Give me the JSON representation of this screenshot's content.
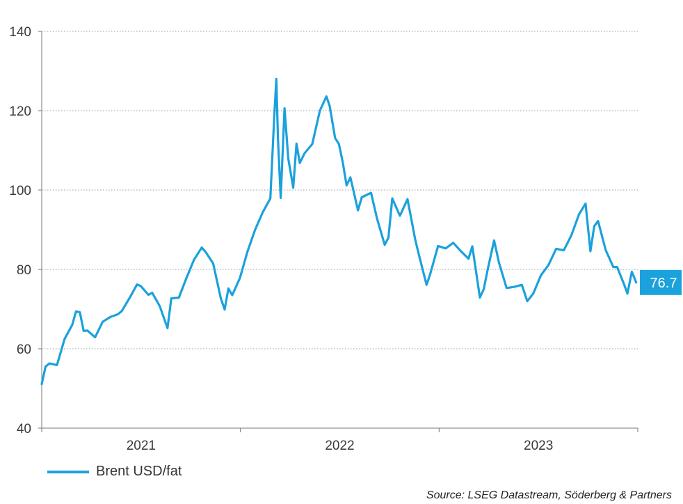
{
  "chart_data": {
    "type": "line",
    "title": "",
    "xlabel": "",
    "ylabel": "",
    "ylim": [
      40,
      140
    ],
    "y_ticks": [
      "40",
      "60",
      "80",
      "100",
      "120",
      "140"
    ],
    "x_ticks": [
      "2021",
      "2022",
      "2023"
    ],
    "grid": "horizontal dotted",
    "legend_position": "bottom-left",
    "series": [
      {
        "name": "Brent USD/fat",
        "color": "#1ba1dc",
        "x": [
          "2021-01-01",
          "2021-01-08",
          "2021-01-15",
          "2021-01-29",
          "2021-02-12",
          "2021-02-26",
          "2021-03-05",
          "2021-03-12",
          "2021-03-19",
          "2021-03-26",
          "2021-04-09",
          "2021-04-23",
          "2021-05-07",
          "2021-05-21",
          "2021-05-28",
          "2021-06-11",
          "2021-06-25",
          "2021-07-02",
          "2021-07-16",
          "2021-07-23",
          "2021-08-06",
          "2021-08-20",
          "2021-08-27",
          "2021-09-10",
          "2021-09-24",
          "2021-10-08",
          "2021-10-22",
          "2021-10-29",
          "2021-11-12",
          "2021-11-26",
          "2021-12-03",
          "2021-12-10",
          "2021-12-17",
          "2021-12-31",
          "2022-01-14",
          "2022-01-28",
          "2022-02-11",
          "2022-02-25",
          "2022-03-04",
          "2022-03-08",
          "2022-03-11",
          "2022-03-16",
          "2022-03-23",
          "2022-03-30",
          "2022-04-08",
          "2022-04-14",
          "2022-04-20",
          "2022-04-29",
          "2022-05-13",
          "2022-05-27",
          "2022-06-08",
          "2022-06-14",
          "2022-06-24",
          "2022-07-01",
          "2022-07-08",
          "2022-07-15",
          "2022-07-22",
          "2022-08-05",
          "2022-08-12",
          "2022-08-29",
          "2022-09-09",
          "2022-09-23",
          "2022-09-30",
          "2022-10-07",
          "2022-10-21",
          "2022-11-04",
          "2022-11-18",
          "2022-11-25",
          "2022-12-09",
          "2022-12-16",
          "2022-12-30",
          "2023-01-13",
          "2023-01-27",
          "2023-02-10",
          "2023-02-24",
          "2023-03-03",
          "2023-03-17",
          "2023-03-24",
          "2023-03-31",
          "2023-04-12",
          "2023-04-21",
          "2023-05-05",
          "2023-05-19",
          "2023-06-02",
          "2023-06-12",
          "2023-06-23",
          "2023-07-07",
          "2023-07-21",
          "2023-08-04",
          "2023-08-18",
          "2023-09-01",
          "2023-09-15",
          "2023-09-27",
          "2023-10-06",
          "2023-10-13",
          "2023-10-20",
          "2023-11-03",
          "2023-11-17",
          "2023-11-24",
          "2023-12-08",
          "2023-12-13",
          "2023-12-21",
          "2023-12-29"
        ],
        "values": [
          51.1,
          55.5,
          56.3,
          55.9,
          62.5,
          66.0,
          69.4,
          69.2,
          64.5,
          64.6,
          62.9,
          66.8,
          68.0,
          68.7,
          69.5,
          72.7,
          76.2,
          75.8,
          73.6,
          74.1,
          70.7,
          65.2,
          72.7,
          72.9,
          77.9,
          82.5,
          85.5,
          84.4,
          81.5,
          72.7,
          69.9,
          75.2,
          73.5,
          77.8,
          84.5,
          90.0,
          94.4,
          97.9,
          118.1,
          128.0,
          112.7,
          98.0,
          120.6,
          107.9,
          100.6,
          111.7,
          106.8,
          109.3,
          111.6,
          120.0,
          123.6,
          121.2,
          113.1,
          111.6,
          107.0,
          101.2,
          103.2,
          94.9,
          98.2,
          99.3,
          92.8,
          86.2,
          88.0,
          97.9,
          93.5,
          97.7,
          87.6,
          83.6,
          76.1,
          79.0,
          85.9,
          85.3,
          86.7,
          84.6,
          82.7,
          85.8,
          72.9,
          75.0,
          79.8,
          87.3,
          81.7,
          75.3,
          75.6,
          76.1,
          72.0,
          73.9,
          78.5,
          81.1,
          85.2,
          84.8,
          88.6,
          93.9,
          96.6,
          84.6,
          90.9,
          92.2,
          84.9,
          80.6,
          80.6,
          75.8,
          73.9,
          79.4,
          76.7
        ]
      }
    ],
    "last_value_label": "76.7",
    "source": "Source: LSEG Datastream, Söderberg & Partners"
  }
}
